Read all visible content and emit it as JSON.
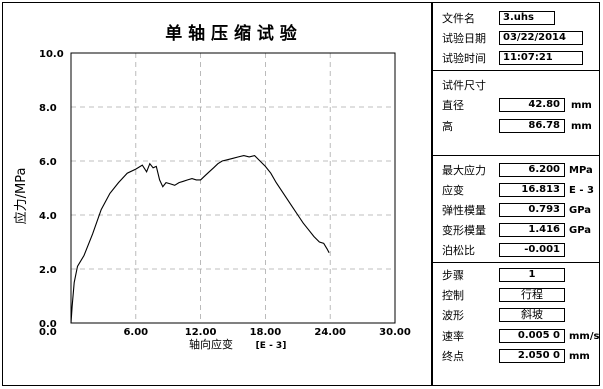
{
  "chart_data": {
    "type": "line",
    "title": "单 轴 压 缩 试 验",
    "xlabel": "轴向应变",
    "xunit": "[E - 3]",
    "ylabel": "应力/MPa",
    "xlim": [
      0,
      30
    ],
    "ylim": [
      0,
      10
    ],
    "xticks": [
      "0.0",
      "6.00",
      "12.00",
      "18.00",
      "24.00",
      "30.00"
    ],
    "yticks": [
      "0.0",
      "2.0",
      "4.0",
      "6.0",
      "8.0",
      "10.0"
    ],
    "grid": "dashed",
    "series": [
      {
        "x": [
          0.0,
          0.1,
          0.3,
          0.6,
          1.2,
          2.0,
          2.8,
          3.6,
          4.4,
          5.2,
          6.0,
          6.6,
          7.0,
          7.3,
          7.6,
          7.9,
          8.2,
          8.5,
          8.8,
          9.2,
          9.6,
          10.0,
          10.4,
          10.8,
          11.2,
          11.6,
          12.0,
          12.4,
          12.8,
          13.2,
          13.6,
          14.0,
          14.5,
          15.0,
          15.5,
          16.0,
          16.5,
          17.0,
          17.5,
          18.0,
          18.5,
          19.0,
          19.5,
          20.0,
          20.5,
          21.0,
          21.5,
          22.0,
          22.5,
          23.0,
          23.4,
          23.7,
          23.9
        ],
        "y": [
          0.0,
          0.6,
          1.5,
          2.1,
          2.5,
          3.3,
          4.2,
          4.8,
          5.2,
          5.55,
          5.7,
          5.85,
          5.6,
          5.9,
          5.75,
          5.8,
          5.3,
          5.05,
          5.2,
          5.15,
          5.1,
          5.2,
          5.25,
          5.3,
          5.35,
          5.3,
          5.3,
          5.45,
          5.6,
          5.75,
          5.9,
          6.0,
          6.05,
          6.1,
          6.15,
          6.2,
          6.15,
          6.2,
          6.0,
          5.8,
          5.55,
          5.2,
          4.9,
          4.6,
          4.3,
          4.0,
          3.7,
          3.45,
          3.2,
          3.0,
          2.95,
          2.75,
          2.6
        ]
      }
    ]
  },
  "file_info": {
    "file_label": "文件名",
    "file_value": "3.uhs",
    "date_label": "试验日期",
    "date_value": "03/22/2014",
    "time_label": "试验时间",
    "time_value": "11:07:21"
  },
  "specimen": {
    "title": "试件尺寸",
    "diameter_label": "直径",
    "diameter_value": "42.80",
    "diameter_unit": "mm",
    "height_label": "高",
    "height_value": "86.78",
    "height_unit": "mm"
  },
  "results": {
    "max_stress_label": "最大应力",
    "max_stress_value": "6.200",
    "max_stress_unit": "MPa",
    "strain_label": "应变",
    "strain_value": "16.813",
    "strain_unit": "E - 3",
    "elastic_label": "弹性模量",
    "elastic_value": "0.793",
    "elastic_unit": "GPa",
    "deform_label": "变形模量",
    "deform_value": "1.416",
    "deform_unit": "GPa",
    "poisson_label": "泊松比",
    "poisson_value": "-0.001"
  },
  "control": {
    "step_label": "步骤",
    "step_value": "1",
    "ctrl_label": "控制",
    "ctrl_value": "行程",
    "wave_label": "波形",
    "wave_value": "斜坡",
    "rate_label": "速率",
    "rate_value": "0.005 0",
    "rate_unit": "mm/s",
    "end_label": "终点",
    "end_value": "2.050 0",
    "end_unit": "mm"
  }
}
